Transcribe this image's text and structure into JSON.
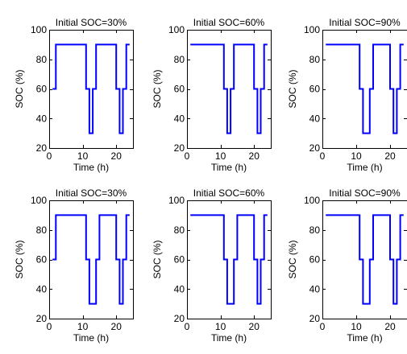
{
  "figure": {
    "colors": {
      "line": "#0000ff",
      "axes": "#000000",
      "background": "#ffffff"
    }
  },
  "chart_data": [
    {
      "type": "line",
      "title": "Initial SOC=30%",
      "xlabel": "Time (h)",
      "ylabel": "SOC (%)",
      "xlim": [
        0,
        25
      ],
      "ylim": [
        20,
        100
      ],
      "xticks": [
        0,
        10,
        20
      ],
      "yticks": [
        20,
        40,
        60,
        80,
        100
      ],
      "grid": false,
      "series": [
        {
          "x": [
            1,
            2,
            2,
            11,
            11,
            12,
            12,
            13,
            13,
            14,
            14,
            20,
            20,
            21,
            21,
            22,
            22,
            23,
            23,
            24
          ],
          "y": [
            60,
            60,
            90,
            90,
            60,
            60,
            30,
            30,
            60,
            60,
            90,
            90,
            60,
            60,
            30,
            30,
            60,
            60,
            90,
            90
          ]
        }
      ]
    },
    {
      "type": "line",
      "title": "Initial SOC=60%",
      "xlabel": "Time (h)",
      "ylabel": "SOC (%)",
      "xlim": [
        0,
        25
      ],
      "ylim": [
        20,
        100
      ],
      "xticks": [
        0,
        10,
        20
      ],
      "yticks": [
        20,
        40,
        60,
        80,
        100
      ],
      "grid": false,
      "series": [
        {
          "x": [
            1,
            11,
            11,
            12,
            12,
            13,
            13,
            14,
            14,
            20,
            20,
            21,
            21,
            22,
            22,
            23,
            23,
            24
          ],
          "y": [
            90,
            90,
            60,
            60,
            30,
            30,
            60,
            60,
            90,
            90,
            60,
            60,
            30,
            30,
            60,
            60,
            90,
            90
          ]
        }
      ]
    },
    {
      "type": "line",
      "title": "Initial SOC=90%",
      "xlabel": "Time (h)",
      "ylabel": "SOC (%)",
      "xlim": [
        0,
        25
      ],
      "ylim": [
        20,
        100
      ],
      "xticks": [
        0,
        10,
        20
      ],
      "yticks": [
        20,
        40,
        60,
        80,
        100
      ],
      "grid": false,
      "series": [
        {
          "x": [
            1,
            11,
            11,
            12,
            12,
            14,
            14,
            15,
            15,
            20,
            20,
            21,
            21,
            22,
            22,
            23,
            23,
            24
          ],
          "y": [
            90,
            90,
            60,
            60,
            30,
            30,
            60,
            60,
            90,
            90,
            60,
            60,
            30,
            30,
            60,
            60,
            90,
            90
          ]
        }
      ]
    },
    {
      "type": "line",
      "title": "Initial SOC=30%",
      "xlabel": "Time (h)",
      "ylabel": "SOC (%)",
      "xlim": [
        0,
        25
      ],
      "ylim": [
        20,
        100
      ],
      "xticks": [
        0,
        10,
        20
      ],
      "yticks": [
        20,
        40,
        60,
        80,
        100
      ],
      "grid": false,
      "series": [
        {
          "x": [
            1,
            2,
            2,
            11,
            11,
            12,
            12,
            14,
            14,
            15,
            15,
            20,
            20,
            21,
            21,
            22,
            22,
            23,
            23,
            24
          ],
          "y": [
            60,
            60,
            90,
            90,
            60,
            60,
            30,
            30,
            60,
            60,
            90,
            90,
            60,
            60,
            30,
            30,
            60,
            60,
            90,
            90
          ]
        }
      ]
    },
    {
      "type": "line",
      "title": "Initial SOC=60%",
      "xlabel": "Time (h)",
      "ylabel": "SOC (%)",
      "xlim": [
        0,
        25
      ],
      "ylim": [
        20,
        100
      ],
      "xticks": [
        0,
        10,
        20
      ],
      "yticks": [
        20,
        40,
        60,
        80,
        100
      ],
      "grid": false,
      "series": [
        {
          "x": [
            1,
            11,
            11,
            12,
            12,
            14,
            14,
            15,
            15,
            20,
            20,
            21,
            21,
            22,
            22,
            23,
            23,
            24
          ],
          "y": [
            90,
            90,
            60,
            60,
            30,
            30,
            60,
            60,
            90,
            90,
            60,
            60,
            30,
            30,
            60,
            60,
            90,
            90
          ]
        }
      ]
    },
    {
      "type": "line",
      "title": "Initial SOC=90%",
      "xlabel": "Time (h)",
      "ylabel": "SOC (%)",
      "xlim": [
        0,
        25
      ],
      "ylim": [
        20,
        100
      ],
      "xticks": [
        0,
        10,
        20
      ],
      "yticks": [
        20,
        40,
        60,
        80,
        100
      ],
      "grid": false,
      "series": [
        {
          "x": [
            1,
            11,
            11,
            12,
            12,
            14,
            14,
            15,
            15,
            20,
            20,
            21,
            21,
            22,
            22,
            23,
            23,
            24
          ],
          "y": [
            90,
            90,
            60,
            60,
            30,
            30,
            60,
            60,
            90,
            90,
            60,
            60,
            30,
            30,
            60,
            60,
            90,
            90
          ]
        }
      ]
    }
  ]
}
